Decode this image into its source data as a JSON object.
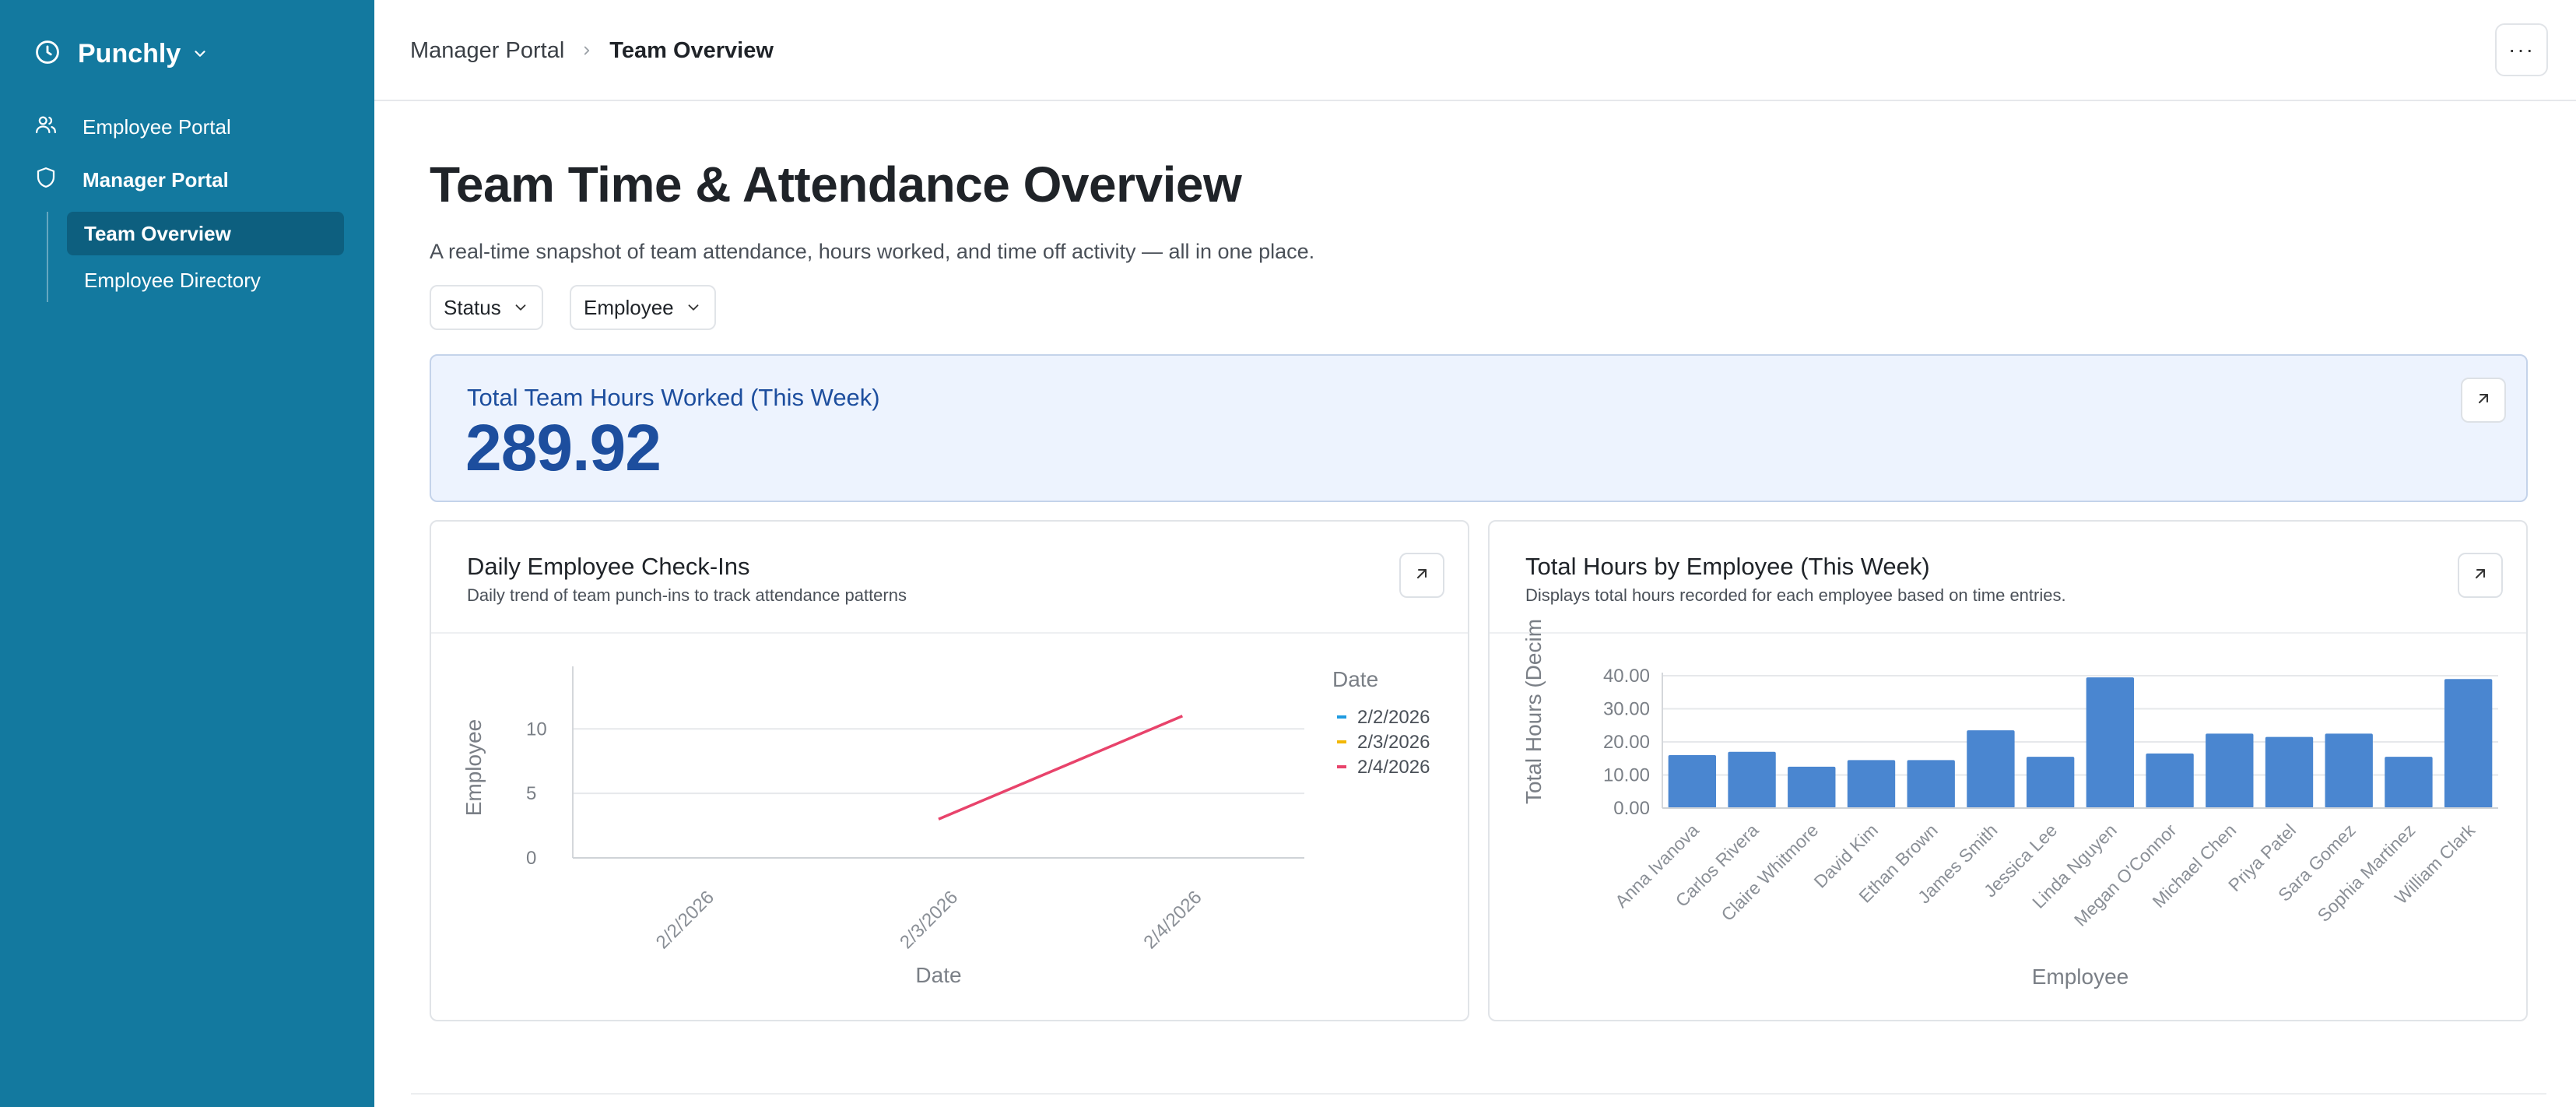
{
  "sidebar": {
    "app_name": "Punchly",
    "items": [
      {
        "label": "Employee Portal",
        "icon": "users-icon"
      },
      {
        "label": "Manager Portal",
        "icon": "shield-icon"
      }
    ],
    "sub_items": [
      {
        "label": "Team Overview",
        "active": true
      },
      {
        "label": "Employee Directory",
        "active": false
      }
    ],
    "bg_color": "#13799f"
  },
  "header": {
    "breadcrumb": [
      "Manager Portal",
      "Team Overview"
    ],
    "more_label": "···"
  },
  "main": {
    "title": "Team Time & Attendance Overview",
    "description": "A real-time snapshot of team attendance, hours worked, and time off activity — all in one place.",
    "filters": [
      "Status",
      "Employee"
    ],
    "kpi": {
      "label": "Total Team Hours Worked (This Week)",
      "value": "289.92"
    },
    "cards": [
      {
        "title": "Daily Employee Check-Ins",
        "subtitle": "Daily trend of team punch-ins to track attendance patterns"
      },
      {
        "title": "Total Hours by Employee (This Week)",
        "subtitle": "Displays total hours recorded for each employee based on time entries."
      }
    ]
  },
  "chart_data": [
    {
      "type": "line",
      "x": [
        "2/2/2026",
        "2/3/2026",
        "2/4/2026"
      ],
      "series": [
        {
          "name": "2/2/2026",
          "color": "#1f9be0",
          "values": [
            null,
            null,
            null
          ]
        },
        {
          "name": "2/3/2026",
          "color": "#f2b705",
          "values": [
            null,
            null,
            null
          ]
        },
        {
          "name": "2/4/2026",
          "color": "#e8436b",
          "values": [
            null,
            3,
            11
          ]
        }
      ],
      "xlabel": "Date",
      "ylabel": "Employee",
      "yticks": [
        "0",
        "5",
        "10"
      ],
      "ylim": [
        0,
        14
      ],
      "legend_title": "Date",
      "legend_position": "right",
      "grid": true
    },
    {
      "type": "bar",
      "categories": [
        "Anna Ivanova",
        "Carlos Rivera",
        "Claire Whitmore",
        "David Kim",
        "Ethan Brown",
        "James Smith",
        "Jessica Lee",
        "Linda Nguyen",
        "Megan O'Connor",
        "Michael Chen",
        "Priya Patel",
        "Sara Gomez",
        "Sophia Martinez",
        "William Clark"
      ],
      "values": [
        16,
        17,
        12.5,
        14.5,
        14.5,
        23.5,
        15.5,
        39.5,
        16.5,
        22.5,
        21.5,
        22.5,
        15.5,
        39
      ],
      "xlabel": "Employee",
      "ylabel": "Total Hours (Decim",
      "yticks": [
        "0.00",
        "10.00",
        "20.00",
        "30.00",
        "40.00"
      ],
      "ylim": [
        0,
        40
      ],
      "color": "#4a86d0",
      "grid": true
    }
  ]
}
